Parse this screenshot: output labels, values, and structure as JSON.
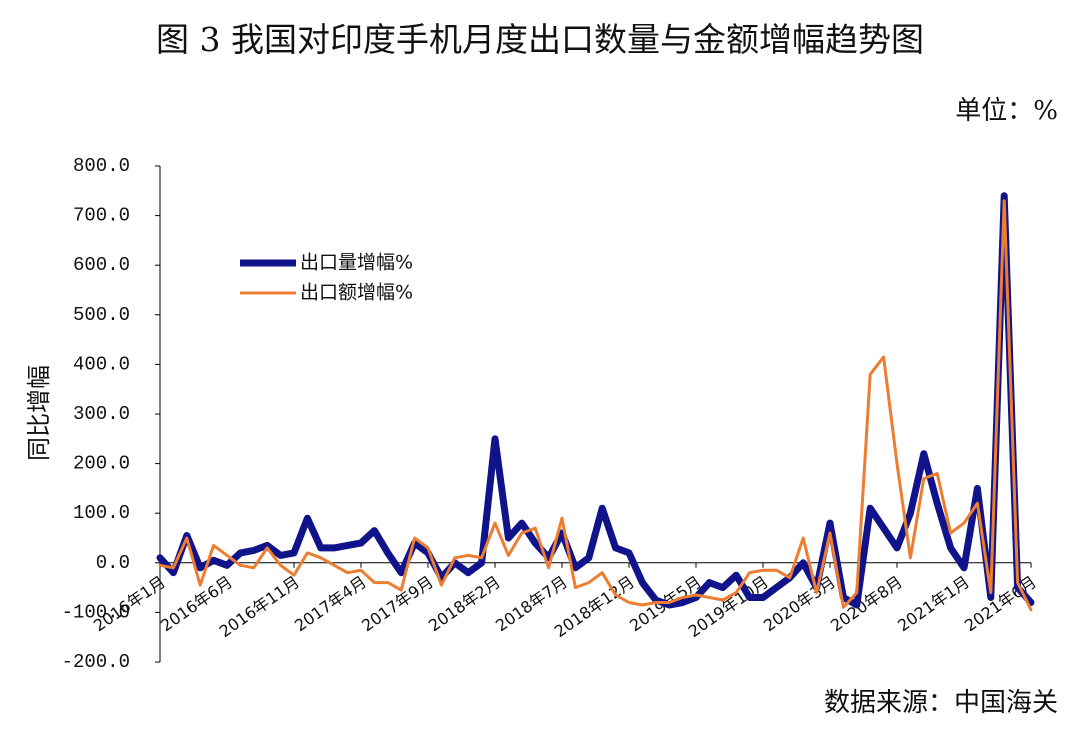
{
  "chart_data": {
    "type": "line",
    "title": "图 3 我国对印度手机月度出口数量与金额增幅趋势图",
    "unit": "单位：%",
    "y_label": "同比增幅",
    "source": "数据来源：中国海关",
    "categories": [
      "2016年1月",
      null,
      null,
      null,
      null,
      "2016年6月",
      null,
      null,
      null,
      null,
      "2016年11月",
      null,
      null,
      null,
      null,
      "2017年4月",
      null,
      null,
      null,
      null,
      "2017年9月",
      null,
      null,
      null,
      null,
      "2018年2月",
      null,
      null,
      null,
      null,
      "2018年7月",
      null,
      null,
      null,
      null,
      "2018年12月",
      null,
      null,
      null,
      null,
      "2019年5月",
      null,
      null,
      null,
      null,
      "2019年10月",
      null,
      null,
      null,
      null,
      "2020年3月",
      null,
      null,
      null,
      null,
      "2020年8月",
      null,
      null,
      null,
      null,
      "2021年1月",
      null,
      null,
      null,
      null,
      "2021年6月"
    ],
    "series": [
      {
        "name": "出口量增幅%",
        "color": "#10138a",
        "width": 7,
        "values": [
          10,
          -20,
          55,
          -10,
          5,
          -5,
          20,
          25,
          35,
          15,
          20,
          90,
          30,
          30,
          35,
          40,
          65,
          20,
          -20,
          40,
          20,
          -30,
          0,
          -20,
          0,
          250,
          50,
          80,
          40,
          10,
          60,
          -10,
          10,
          110,
          30,
          20,
          -40,
          -75,
          -85,
          -80,
          -70,
          -40,
          -50,
          -25,
          -70,
          -70,
          -50,
          -30,
          0,
          -50,
          80,
          -70,
          -85,
          110,
          70,
          30,
          100,
          220,
          120,
          30,
          -10,
          150,
          -70,
          740,
          -50,
          -80
        ]
      },
      {
        "name": "出口额增幅%",
        "color": "#ed7d31",
        "width": 3,
        "values": [
          -5,
          -10,
          50,
          -45,
          35,
          15,
          -5,
          -10,
          30,
          -5,
          -25,
          20,
          10,
          -5,
          -20,
          -15,
          -40,
          -40,
          -55,
          50,
          30,
          -45,
          10,
          15,
          10,
          80,
          15,
          60,
          70,
          -10,
          90,
          -50,
          -40,
          -20,
          -65,
          -80,
          -85,
          -80,
          -80,
          -70,
          -65,
          -70,
          -75,
          -60,
          -20,
          -15,
          -15,
          -30,
          50,
          -60,
          60,
          -90,
          -60,
          380,
          415,
          200,
          10,
          170,
          180,
          60,
          80,
          120,
          -60,
          730,
          -40,
          -95
        ]
      }
    ],
    "ylim": [
      -200,
      800
    ],
    "yticks": [
      {
        "value": 800,
        "label": "800.0"
      },
      {
        "value": 700,
        "label": "700.0"
      },
      {
        "value": 600,
        "label": "600.0"
      },
      {
        "value": 500,
        "label": "500.0"
      },
      {
        "value": 400,
        "label": "400.0"
      },
      {
        "value": 300,
        "label": "300.0"
      },
      {
        "value": 200,
        "label": "200.0"
      },
      {
        "value": 100,
        "label": "100.0"
      },
      {
        "value": 0,
        "label": "0.0"
      },
      {
        "value": -100,
        "label": "-100.0"
      },
      {
        "value": -200,
        "label": "-200.0"
      }
    ],
    "legend": "upper left"
  }
}
